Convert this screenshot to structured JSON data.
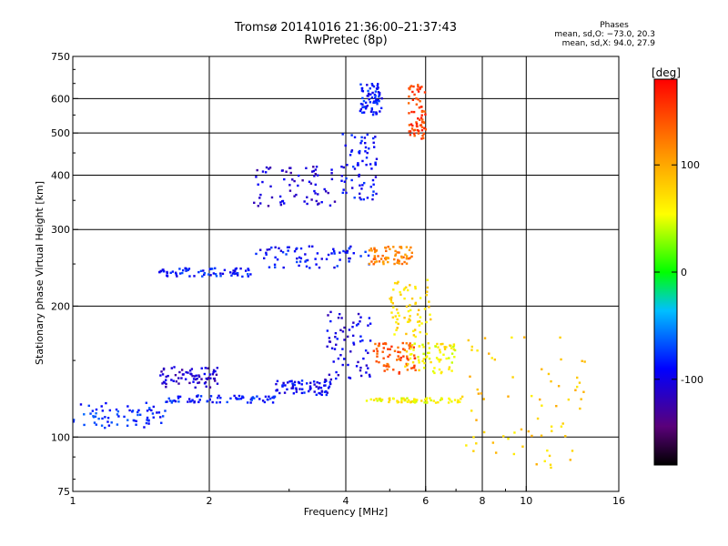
{
  "header": {
    "title": "Tromsø 20141016 21:36:00–21:37:43",
    "subtitle": "RwPretec (8p)"
  },
  "stats": {
    "heading": "Phases",
    "line_o": "mean, sd,O: −73.0, 20.3",
    "line_x": "mean, sd,X:  94.0, 27.9"
  },
  "chart_data": {
    "type": "scatter",
    "xlabel": "Frequency [MHz]",
    "ylabel": "Stationary phase Virtual Height [km]",
    "x_scale": "log",
    "y_scale": "log",
    "xlim": [
      1,
      16
    ],
    "ylim": [
      75,
      750
    ],
    "x_ticks": [
      1,
      2,
      4,
      8,
      10,
      16
    ],
    "x_tick_labels": [
      "1",
      "2",
      "4",
      "8",
      "10",
      "16"
    ],
    "x_minor_ticks": [
      6
    ],
    "x_minor_tick_labels": [
      "6"
    ],
    "x_gridlines": [
      2,
      4,
      6,
      8,
      10
    ],
    "y_ticks": [
      75,
      100,
      200,
      300,
      400,
      500,
      600,
      750
    ],
    "y_tick_labels": [
      "75",
      "100",
      "200",
      "300",
      "400",
      "500",
      "600",
      "750"
    ],
    "y_gridlines": [
      100,
      200,
      300,
      400,
      500,
      600
    ],
    "grid": true,
    "colorbar": {
      "label": "[deg]",
      "range": [
        -180,
        180
      ],
      "ticks": [
        100,
        0,
        -100
      ],
      "tick_labels": [
        "100",
        "0",
        "-100"
      ],
      "colormap": "rainbow"
    },
    "series": [
      {
        "x_range": [
          1.0,
          1.6
        ],
        "y_range": [
          105,
          120
        ],
        "phase": -80
      },
      {
        "x_range": [
          1.6,
          2.8
        ],
        "y_range": [
          120,
          125
        ],
        "phase": -85
      },
      {
        "x_range": [
          2.8,
          3.7
        ],
        "y_range": [
          125,
          135
        ],
        "phase": -95
      },
      {
        "x_range": [
          3.6,
          4.6
        ],
        "y_range": [
          135,
          200
        ],
        "phase": -100
      },
      {
        "x_range": [
          1.55,
          2.1
        ],
        "y_range": [
          130,
          145
        ],
        "phase": -110
      },
      {
        "x_range": [
          1.55,
          2.5
        ],
        "y_range": [
          234,
          245
        ],
        "phase": -85
      },
      {
        "x_range": [
          2.5,
          4.5
        ],
        "y_range": [
          245,
          275
        ],
        "phase": -90
      },
      {
        "x_range": [
          4.5,
          5.6
        ],
        "y_range": [
          250,
          275
        ],
        "phase": 120
      },
      {
        "x_range": [
          3.9,
          4.7
        ],
        "y_range": [
          350,
          500
        ],
        "phase": -90
      },
      {
        "x_range": [
          4.3,
          4.8
        ],
        "y_range": [
          550,
          650
        ],
        "phase": -85
      },
      {
        "x_range": [
          2.5,
          3.8
        ],
        "y_range": [
          340,
          420
        ],
        "phase": -110
      },
      {
        "x_range": [
          4.6,
          5.7
        ],
        "y_range": [
          140,
          165
        ],
        "phase": 140
      },
      {
        "x_range": [
          5.4,
          7.0
        ],
        "y_range": [
          140,
          165
        ],
        "phase": 60
      },
      {
        "x_range": [
          4.4,
          7.2
        ],
        "y_range": [
          120,
          123
        ],
        "phase": 60
      },
      {
        "x_range": [
          5.5,
          6.0
        ],
        "y_range": [
          480,
          650
        ],
        "phase": 150
      },
      {
        "x_range": [
          5.0,
          6.2
        ],
        "y_range": [
          170,
          230
        ],
        "phase": 70
      },
      {
        "x_range": [
          7.0,
          13.5
        ],
        "y_range": [
          85,
          170
        ],
        "phase": 80
      }
    ]
  }
}
